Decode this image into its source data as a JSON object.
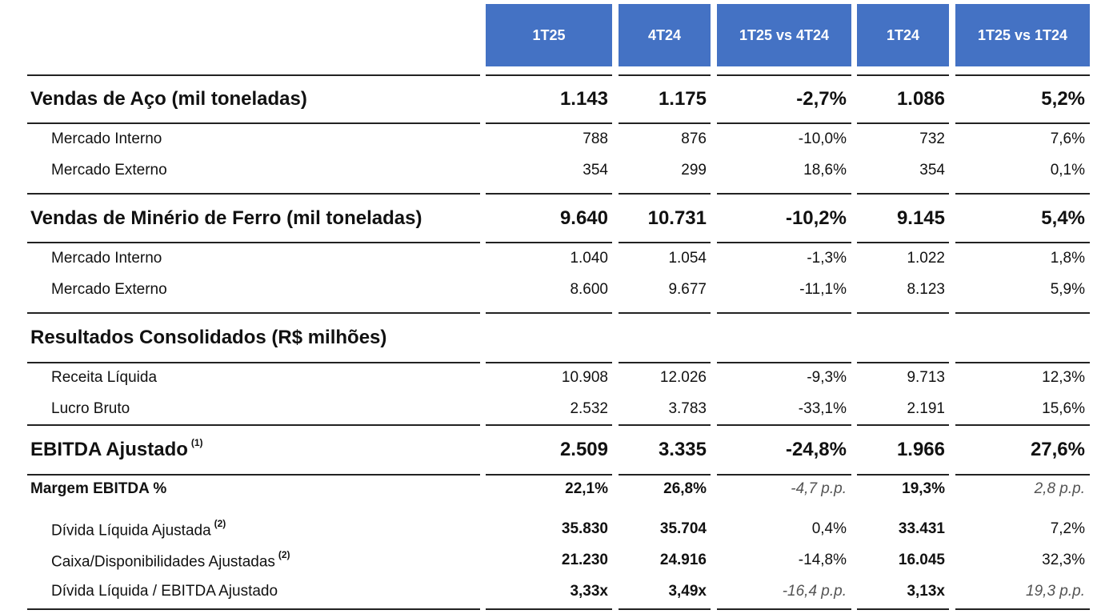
{
  "columns": [
    "1T25",
    "4T24",
    "1T25 vs 4T24",
    "1T24",
    "1T25 vs 1T24"
  ],
  "rows": [
    {
      "label": "Vendas de Aço (mil toneladas)",
      "values": [
        "1.143",
        "1.175",
        "-2,7%",
        "1.086",
        "5,2%"
      ]
    },
    {
      "label": "Mercado Interno",
      "values": [
        "788",
        "876",
        "-10,0%",
        "732",
        "7,6%"
      ]
    },
    {
      "label": "Mercado Externo",
      "values": [
        "354",
        "299",
        "18,6%",
        "354",
        "0,1%"
      ]
    },
    {
      "label": "Vendas de Minério de Ferro (mil toneladas)",
      "values": [
        "9.640",
        "10.731",
        "-10,2%",
        "9.145",
        "5,4%"
      ]
    },
    {
      "label": "Mercado Interno",
      "values": [
        "1.040",
        "1.054",
        "-1,3%",
        "1.022",
        "1,8%"
      ]
    },
    {
      "label": "Mercado Externo",
      "values": [
        "8.600",
        "9.677",
        "-11,1%",
        "8.123",
        "5,9%"
      ]
    },
    {
      "label": "Resultados Consolidados (R$ milhões)",
      "values": [
        "",
        "",
        "",
        "",
        ""
      ]
    },
    {
      "label": "Receita Líquida",
      "values": [
        "10.908",
        "12.026",
        "-9,3%",
        "9.713",
        "12,3%"
      ]
    },
    {
      "label": "Lucro Bruto",
      "values": [
        "2.532",
        "3.783",
        "-33,1%",
        "2.191",
        "15,6%"
      ]
    },
    {
      "label": "EBITDA Ajustado",
      "note": "(1)",
      "values": [
        "2.509",
        "3.335",
        "-24,8%",
        "1.966",
        "27,6%"
      ]
    },
    {
      "label": "Margem EBITDA %",
      "values": [
        "22,1%",
        "26,8%",
        "-4,7 p.p.",
        "19,3%",
        "2,8 p.p."
      ]
    },
    {
      "label": "Dívida Líquida Ajustada",
      "note": "(2)",
      "values": [
        "35.830",
        "35.704",
        "0,4%",
        "33.431",
        "7,2%"
      ]
    },
    {
      "label": "Caixa/Disponibilidades Ajustadas",
      "note": "(2)",
      "values": [
        "21.230",
        "24.916",
        "-14,8%",
        "16.045",
        "32,3%"
      ]
    },
    {
      "label": "Dívida Líquida / EBITDA Ajustado",
      "values": [
        "3,33x",
        "3,49x",
        "-16,4 p.p.",
        "3,13x",
        "19,3 p.p."
      ]
    }
  ]
}
